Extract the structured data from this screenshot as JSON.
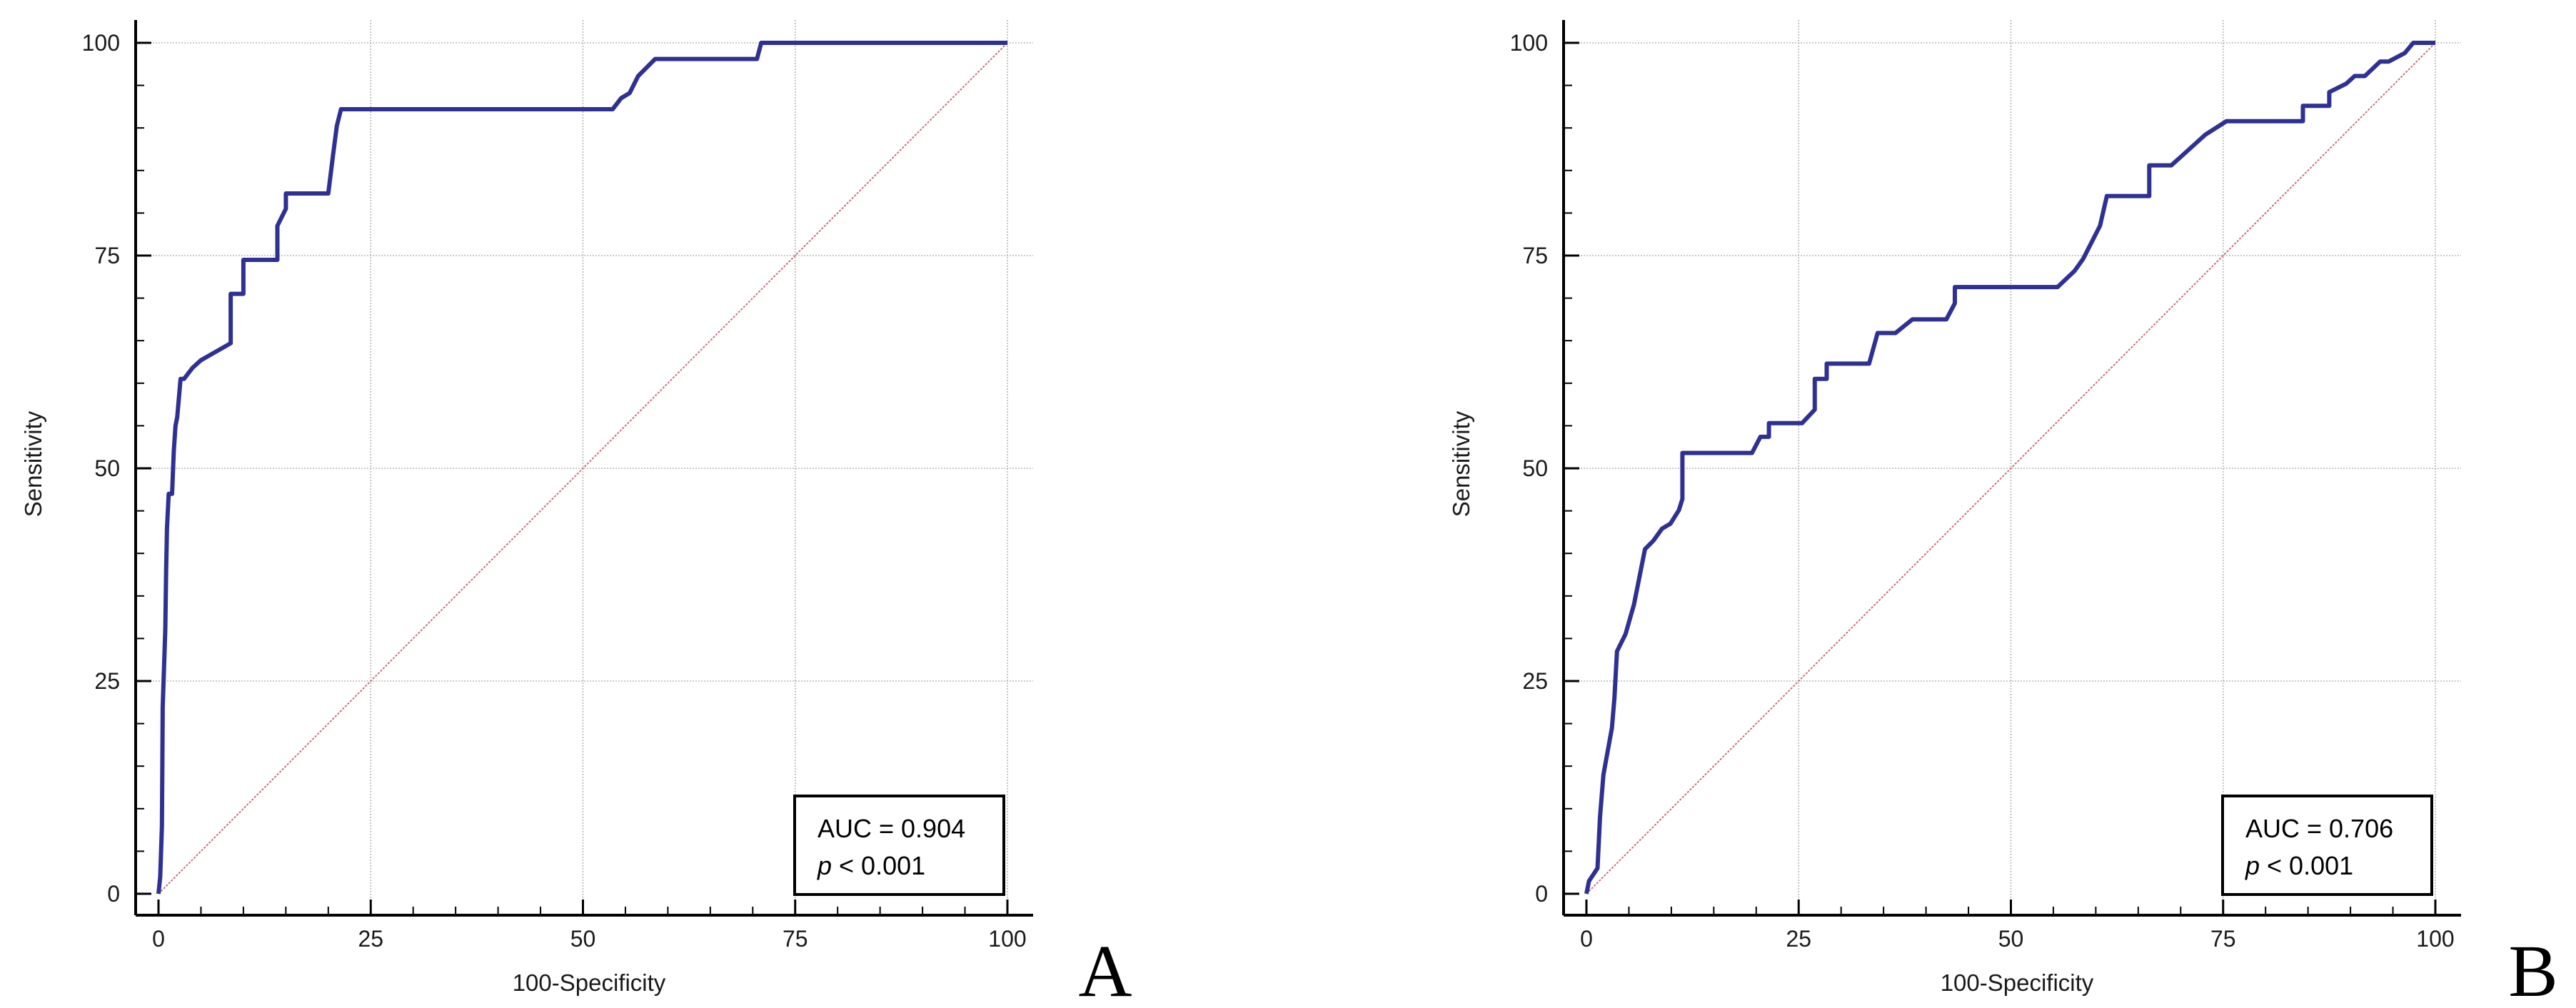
{
  "colors": {
    "roc_line": "#2e3192",
    "reference_line": "#c9707a",
    "grid": "#b8b8b8",
    "axis": "#000000"
  },
  "chart_data": [
    {
      "type": "line",
      "panel_label": "A",
      "xlabel": "100-Specificity",
      "ylabel": "Sensitivity",
      "xlim": [
        0,
        100
      ],
      "ylim": [
        0,
        100
      ],
      "x_ticks": [
        "0",
        "25",
        "50",
        "75",
        "100"
      ],
      "y_ticks": [
        "0",
        "25",
        "50",
        "75",
        "100"
      ],
      "grid": true,
      "reference_diagonal": true,
      "annotation": {
        "auc_text": "AUC = 0.904",
        "p_symbol": "p",
        "p_value": " < 0.001",
        "position": "bottom-right"
      },
      "series": [
        {
          "x": [
            0,
            0.2,
            0.4,
            0.5,
            0.6,
            0.8,
            0.9,
            1.0,
            1.1,
            1.2,
            1.6,
            1.8,
            2.0,
            2.2,
            2.6,
            3.0,
            4.0,
            5.0,
            8.5,
            8.5,
            10.0,
            10.0,
            14.0,
            14.0,
            15.0,
            15.0,
            20.0,
            20.5,
            21.0,
            21.5,
            53.5,
            54.5,
            55.5,
            56.5,
            58.5,
            70.5,
            71.0,
            100
          ],
          "y": [
            0,
            2,
            8,
            22,
            25,
            31,
            38,
            43,
            45,
            47,
            47,
            52,
            55,
            56,
            60.5,
            60.5,
            61.8,
            62.7,
            64.7,
            70.5,
            70.5,
            74.5,
            74.5,
            78.5,
            80.5,
            82.3,
            82.3,
            86.3,
            90.2,
            92.2,
            92.2,
            93.5,
            94.1,
            96.1,
            98.1,
            98.1,
            100,
            100
          ]
        }
      ]
    },
    {
      "type": "line",
      "panel_label": "B",
      "xlabel": "100-Specificity",
      "ylabel": "Sensitivity",
      "xlim": [
        0,
        100
      ],
      "ylim": [
        0,
        100
      ],
      "x_ticks": [
        "0",
        "25",
        "50",
        "75",
        "100"
      ],
      "y_ticks": [
        "0",
        "25",
        "50",
        "75",
        "100"
      ],
      "grid": true,
      "reference_diagonal": true,
      "annotation": {
        "auc_text": "AUC = 0.706",
        "p_symbol": "p",
        "p_value": " < 0.001",
        "position": "bottom-right"
      },
      "series": [
        {
          "x": [
            0,
            0.3,
            1.3,
            1.6,
            2.0,
            3.0,
            3.3,
            3.6,
            4.6,
            5.6,
            5.6,
            6.3,
            6.3,
            6.9,
            7.9,
            8.9,
            9.9,
            10.9,
            11.3,
            11.3,
            19.5,
            20.5,
            21.5,
            21.5,
            25.4,
            26.9,
            26.9,
            28.3,
            28.3,
            33.3,
            34.3,
            36.4,
            38.4,
            42.4,
            43.4,
            43.4,
            55.5,
            57.5,
            58.5,
            60.5,
            61.3,
            66.3,
            66.3,
            68.9,
            70.9,
            72.9,
            72.9,
            75.4,
            75.4,
            84.4,
            84.4,
            87.5,
            87.5,
            89.5,
            90.5,
            91.7,
            93.5,
            94.5,
            96.4,
            97.4,
            100
          ],
          "y": [
            0,
            1.5,
            3,
            9,
            14,
            19.5,
            23,
            28.5,
            30.5,
            34,
            34,
            37.5,
            37.5,
            40.5,
            41.5,
            42.9,
            43.5,
            45.1,
            46.4,
            51.8,
            51.8,
            53.7,
            53.7,
            55.3,
            55.3,
            56.9,
            60.5,
            60.5,
            62.3,
            62.3,
            65.9,
            65.9,
            67.5,
            67.5,
            69.4,
            71.3,
            71.3,
            73.2,
            74.6,
            78.5,
            82.0,
            82.0,
            85.6,
            85.6,
            87.4,
            89.2,
            89.2,
            90.8,
            90.8,
            90.8,
            92.6,
            92.6,
            94.2,
            95.2,
            96.1,
            96.1,
            97.8,
            97.8,
            98.8,
            100,
            100
          ]
        }
      ]
    }
  ]
}
